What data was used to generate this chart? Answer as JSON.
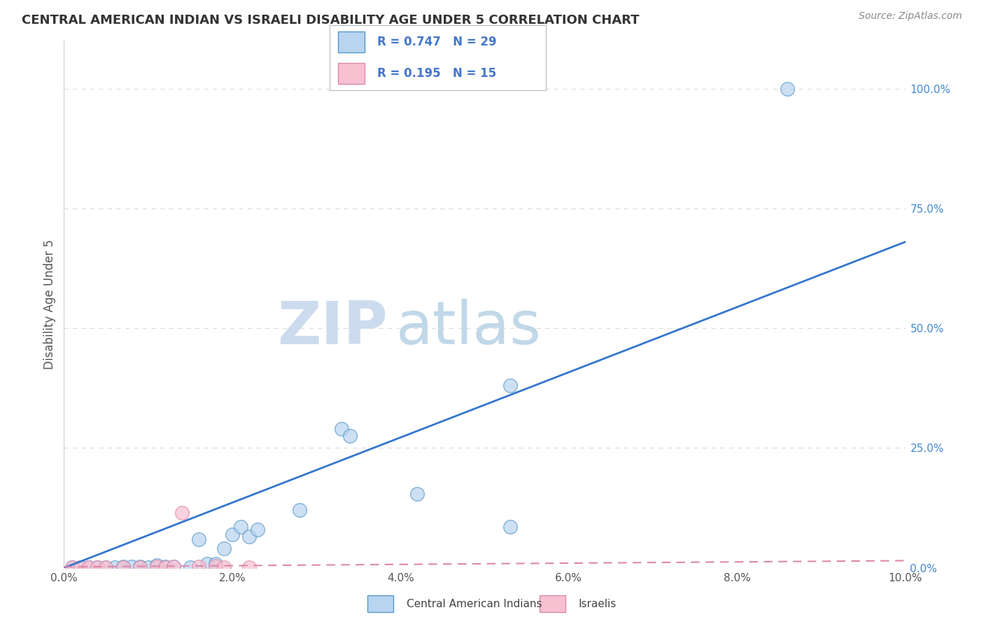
{
  "title": "CENTRAL AMERICAN INDIAN VS ISRAELI DISABILITY AGE UNDER 5 CORRELATION CHART",
  "source": "Source: ZipAtlas.com",
  "ylabel": "Disability Age Under 5",
  "legend_blue_r": "0.747",
  "legend_blue_n": "29",
  "legend_pink_r": "0.195",
  "legend_pink_n": "15",
  "legend_label_blue": "Central American Indians",
  "legend_label_pink": "Israelis",
  "blue_face": "#b8d4ee",
  "blue_edge": "#5599cc",
  "pink_face": "#f8c0d0",
  "pink_edge": "#dd88aa",
  "blue_line_color": "#3377cc",
  "pink_line_color": "#cc6688",
  "legend_text_color": "#4477cc",
  "right_axis_color": "#4488cc",
  "watermark_zip_color": "#ccdcee",
  "watermark_atlas_color": "#c0d8e8",
  "blue_scatter_x": [
    0.001,
    0.002,
    0.003,
    0.004,
    0.005,
    0.006,
    0.007,
    0.008,
    0.009,
    0.01,
    0.011,
    0.012,
    0.013,
    0.015,
    0.016,
    0.017,
    0.018,
    0.019,
    0.02,
    0.021,
    0.022,
    0.023,
    0.028,
    0.033,
    0.034,
    0.042,
    0.053,
    0.053,
    0.086
  ],
  "blue_scatter_y": [
    0.001,
    0.001,
    0.001,
    0.001,
    0.001,
    0.001,
    0.002,
    0.002,
    0.003,
    0.001,
    0.005,
    0.003,
    0.002,
    0.001,
    0.06,
    0.008,
    0.008,
    0.04,
    0.07,
    0.085,
    0.065,
    0.08,
    0.12,
    0.29,
    0.275,
    0.155,
    0.38,
    0.085,
    1.0
  ],
  "pink_scatter_x": [
    0.001,
    0.002,
    0.003,
    0.004,
    0.005,
    0.007,
    0.009,
    0.011,
    0.012,
    0.013,
    0.014,
    0.016,
    0.018,
    0.019,
    0.022
  ],
  "pink_scatter_y": [
    0.001,
    0.001,
    0.001,
    0.001,
    0.001,
    0.001,
    0.001,
    0.002,
    0.001,
    0.002,
    0.115,
    0.003,
    0.004,
    0.001,
    0.001
  ],
  "blue_line_x": [
    0.0,
    0.1
  ],
  "blue_line_y": [
    0.0,
    0.68
  ],
  "pink_line_x": [
    0.0,
    0.1
  ],
  "pink_line_y": [
    0.002,
    0.015
  ],
  "xlim": [
    0.0,
    0.1
  ],
  "ylim": [
    0.0,
    1.1
  ],
  "xtick_vals": [
    0.0,
    0.02,
    0.04,
    0.06,
    0.08,
    0.1
  ],
  "xtick_labels": [
    "0.0%",
    "2.0%",
    "4.0%",
    "6.0%",
    "8.0%",
    "10.0%"
  ],
  "ytick_vals": [
    0.0,
    0.25,
    0.5,
    0.75,
    1.0
  ],
  "ytick_labels": [
    "0.0%",
    "25.0%",
    "50.0%",
    "75.0%",
    "100.0%"
  ],
  "grid_color": "#dddddd"
}
